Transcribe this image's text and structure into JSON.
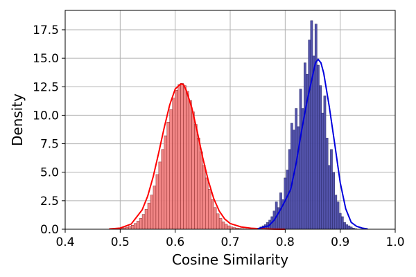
{
  "chart_data": {
    "type": "histogram",
    "xlabel": "Cosine Similarity",
    "ylabel": "Density",
    "xlim": [
      0.4,
      1.0
    ],
    "ylim": [
      0,
      19.2
    ],
    "xticks": [
      0.4,
      0.5,
      0.6,
      0.7,
      0.8,
      0.9,
      1.0
    ],
    "xtick_labels": [
      "0.4",
      "0.5",
      "0.6",
      "0.7",
      "0.8",
      "0.9",
      "1.0"
    ],
    "yticks": [
      0.0,
      2.5,
      5.0,
      7.5,
      10.0,
      12.5,
      15.0,
      17.5
    ],
    "ytick_labels": [
      "0.0",
      "2.5",
      "5.0",
      "7.5",
      "10.0",
      "12.5",
      "15.0",
      "17.5"
    ],
    "grid": true,
    "legend": "none",
    "series": [
      {
        "color": "#ff0000",
        "bar_fill": "#f08080",
        "bin_start": 0.48,
        "bin_width": 0.005,
        "values": [
          0.02,
          0.03,
          0.05,
          0.06,
          0.08,
          0.12,
          0.18,
          0.25,
          0.35,
          0.5,
          0.7,
          0.95,
          1.3,
          1.75,
          2.3,
          3.0,
          3.8,
          4.8,
          5.9,
          7.0,
          8.2,
          9.4,
          10.5,
          11.5,
          12.2,
          12.7,
          12.8,
          12.6,
          12.1,
          11.3,
          10.3,
          9.2,
          8.0,
          6.8,
          5.6,
          4.5,
          3.5,
          2.6,
          1.9,
          1.35,
          0.95,
          0.65,
          0.45,
          0.3,
          0.2,
          0.14,
          0.1,
          0.07,
          0.05,
          0.03,
          0.02,
          0.02,
          0.01
        ],
        "kde_x": [
          0.48,
          0.5,
          0.52,
          0.54,
          0.55,
          0.56,
          0.57,
          0.58,
          0.59,
          0.6,
          0.61,
          0.615,
          0.62,
          0.63,
          0.64,
          0.65,
          0.66,
          0.67,
          0.68,
          0.69,
          0.7,
          0.72,
          0.74,
          0.76,
          0.78,
          0.8
        ],
        "kde_y": [
          0.02,
          0.1,
          0.45,
          1.7,
          2.9,
          4.6,
          6.7,
          8.9,
          10.9,
          12.3,
          12.75,
          12.7,
          12.2,
          10.7,
          8.6,
          6.3,
          4.3,
          2.7,
          1.6,
          0.9,
          0.5,
          0.2,
          0.08,
          0.03,
          0.01,
          0.0
        ]
      },
      {
        "color": "#0000dd",
        "bar_fill": "#4b4ba8",
        "bin_start": 0.75,
        "bin_width": 0.004,
        "values": [
          0.1,
          0.2,
          0.3,
          0.4,
          0.6,
          0.8,
          1.1,
          1.6,
          2.4,
          1.9,
          3.2,
          2.6,
          4.5,
          5.2,
          7.0,
          9.3,
          8.7,
          10.6,
          9.0,
          12.3,
          10.6,
          14.6,
          13.6,
          16.6,
          18.3,
          15.2,
          18.0,
          14.4,
          12.6,
          10.2,
          11.7,
          8.0,
          5.6,
          7.0,
          5.0,
          3.0,
          2.4,
          1.4,
          1.1,
          0.6,
          0.4,
          0.3,
          0.2,
          0.1,
          0.05
        ],
        "kde_x": [
          0.75,
          0.77,
          0.78,
          0.79,
          0.8,
          0.81,
          0.82,
          0.83,
          0.84,
          0.85,
          0.855,
          0.86,
          0.865,
          0.87,
          0.88,
          0.89,
          0.9,
          0.91,
          0.92,
          0.93,
          0.94,
          0.95
        ],
        "kde_y": [
          0.05,
          0.3,
          0.8,
          1.6,
          2.5,
          3.5,
          5.8,
          8.7,
          11.3,
          13.5,
          14.6,
          14.9,
          14.6,
          13.7,
          10.8,
          7.5,
          4.1,
          1.8,
          0.6,
          0.25,
          0.1,
          0.02
        ]
      }
    ]
  }
}
